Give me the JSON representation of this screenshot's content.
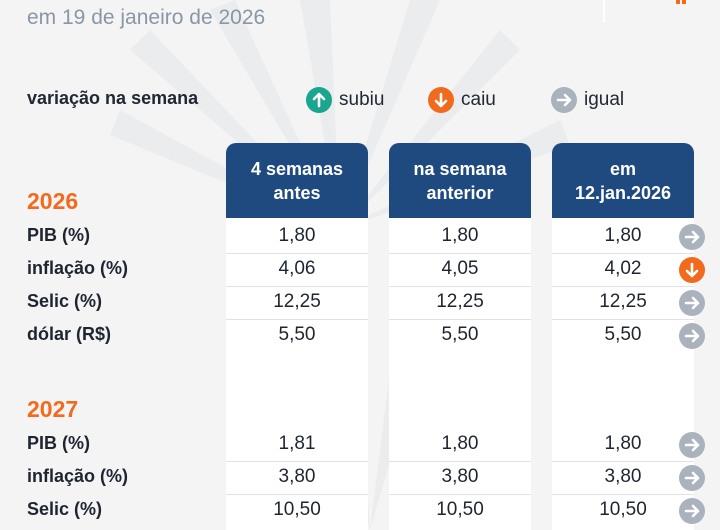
{
  "header": {
    "subtitle": "em 19 de janeiro de 2026"
  },
  "legend": {
    "title": "variação na semana",
    "items": [
      {
        "label": "subiu",
        "icon": "arrow-up-icon",
        "color": "#1aa58e"
      },
      {
        "label": "caiu",
        "icon": "arrow-down-icon",
        "color": "#f26a1b"
      },
      {
        "label": "igual",
        "icon": "arrow-right-icon",
        "color": "#aab2bd"
      }
    ]
  },
  "columns": {
    "col1": {
      "line1": "4 semanas",
      "line2": "antes"
    },
    "col2": {
      "line1": "na semana",
      "line2": "anterior"
    },
    "col3": {
      "line1": "em",
      "line2": "12.jan.2026"
    }
  },
  "colors": {
    "header_blue": "#1f4a80",
    "year_orange": "#f26a1b",
    "up_green": "#1aa58e",
    "down_orange": "#f26a1b",
    "same_gray": "#aab2bd"
  },
  "sections": [
    {
      "year": "2026",
      "rows": [
        {
          "label": "PIB (%)",
          "v1": "1,80",
          "v2": "1,80",
          "v3": "1,80",
          "trend": "igual"
        },
        {
          "label": "inflação (%)",
          "v1": "4,06",
          "v2": "4,05",
          "v3": "4,02",
          "trend": "caiu"
        },
        {
          "label": "Selic (%)",
          "v1": "12,25",
          "v2": "12,25",
          "v3": "12,25",
          "trend": "igual"
        },
        {
          "label": "dólar (R$)",
          "v1": "5,50",
          "v2": "5,50",
          "v3": "5,50",
          "trend": "igual"
        }
      ]
    },
    {
      "year": "2027",
      "rows": [
        {
          "label": "PIB (%)",
          "v1": "1,81",
          "v2": "1,80",
          "v3": "1,80",
          "trend": "igual"
        },
        {
          "label": "inflação (%)",
          "v1": "3,80",
          "v2": "3,80",
          "v3": "3,80",
          "trend": "igual"
        },
        {
          "label": "Selic (%)",
          "v1": "10,50",
          "v2": "10,50",
          "v3": "10,50",
          "trend": "igual"
        }
      ]
    }
  ]
}
